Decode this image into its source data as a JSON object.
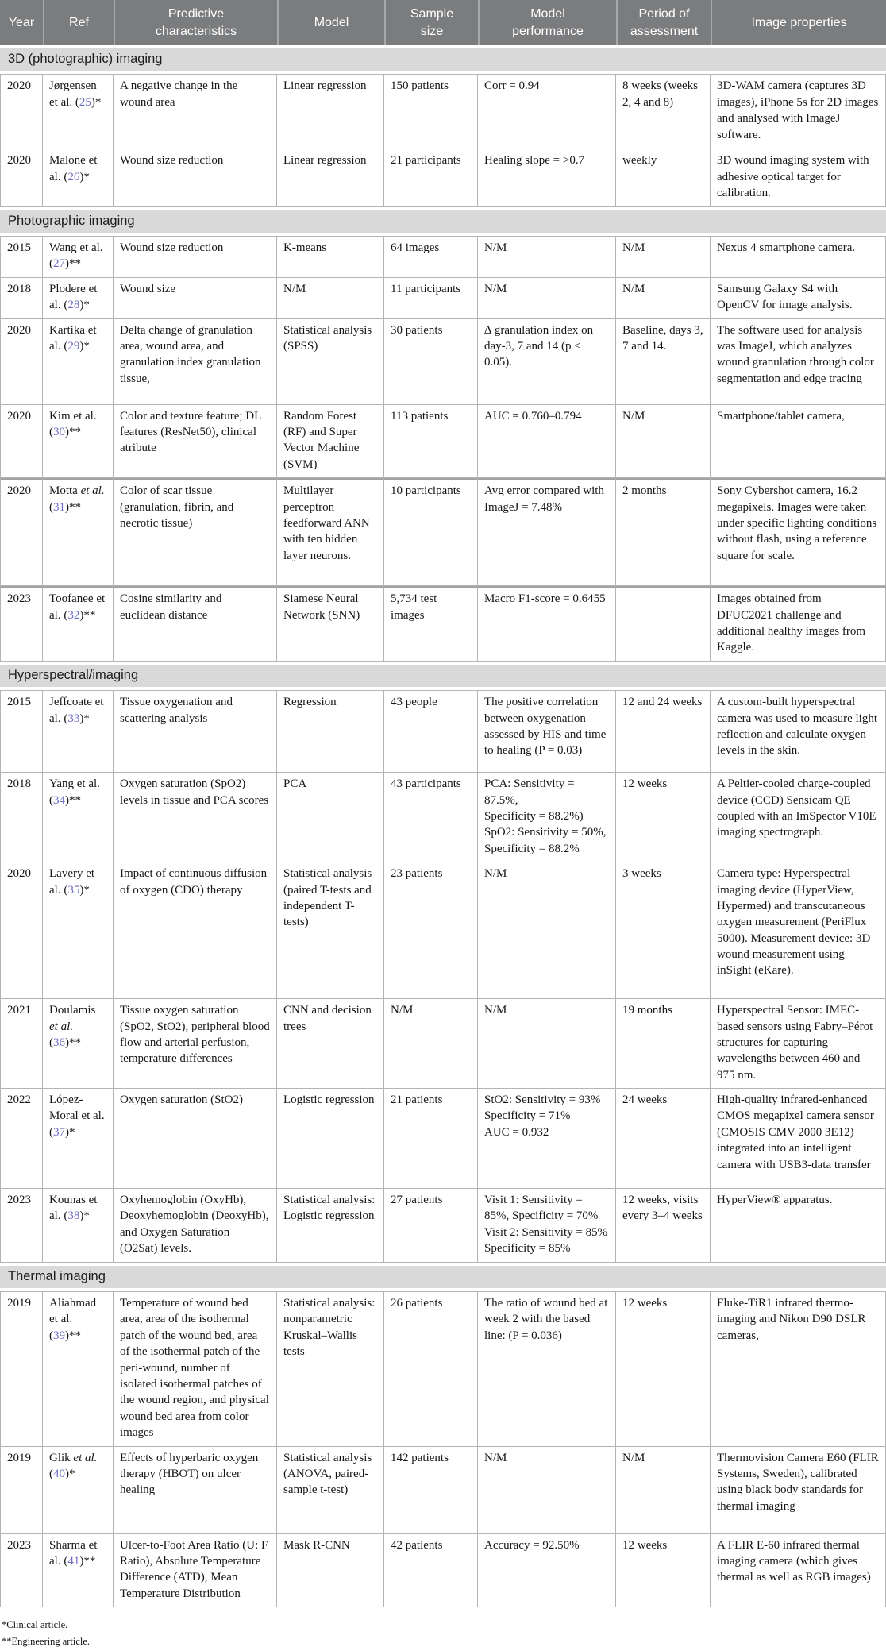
{
  "columns": [
    "Year",
    "Ref",
    "Predictive characteristics",
    "Model",
    "Sample size",
    "Model performance",
    "Period of assessment",
    "Image properties"
  ],
  "accent_colors": {
    "header_background": "#7b7c7e",
    "section_background": "#d9d9d9",
    "citation_link": "#6c6cc4",
    "cell_border": "#b4b4b4"
  },
  "sections": [
    {
      "title": "3D (photographic) imaging",
      "rows": [
        {
          "year": "2020",
          "ref": {
            "name": "Jørgensen",
            "etal": "et al.",
            "num": "25",
            "mark": "*",
            "italic": false
          },
          "characteristics": "A negative change in the wound area",
          "model": "Linear regression",
          "sample": "150 patients",
          "performance": "Corr = 0.94",
          "period": "8 weeks (weeks 2, 4 and 8)",
          "image": "3D-WAM camera (captures 3D images), iPhone 5s for 2D images and analysed with ImageJ software."
        },
        {
          "year": "2020",
          "ref": {
            "name": "Malone",
            "etal": "et al.",
            "num": "26",
            "mark": "*",
            "italic": false
          },
          "characteristics": "Wound size reduction",
          "model": "Linear regression",
          "sample": "21 participants",
          "performance": "Healing slope = >0.7",
          "period": "weekly",
          "image": "3D wound imaging system with adhesive optical target for calibration."
        }
      ]
    },
    {
      "title": "Photographic imaging",
      "rows": [
        {
          "year": "2015",
          "ref": {
            "name": "Wang",
            "etal": "et al.",
            "num": "27",
            "mark": "**",
            "italic": false
          },
          "characteristics": "Wound size reduction",
          "model": "K-means",
          "sample": "64 images",
          "performance": "N/M",
          "period": "N/M",
          "image": "Nexus 4 smartphone camera."
        },
        {
          "year": "2018",
          "ref": {
            "name": "Plodere",
            "etal": "et al.",
            "num": "28",
            "mark": "*",
            "italic": false
          },
          "characteristics": "Wound size",
          "model": "N/M",
          "sample": "11 participants",
          "performance": "N/M",
          "period": "N/M",
          "image": "Samsung Galaxy S4 with OpenCV for image analysis."
        },
        {
          "year": "2020",
          "ref": {
            "name": "Kartika",
            "etal": "et al.",
            "num": "29",
            "mark": "*",
            "italic": false
          },
          "characteristics": "Delta change of granulation area, wound area, and granulation index granulation tissue,",
          "model": "Statistical analysis (SPSS)",
          "sample": "30 patients",
          "performance": "∆ granulation index on day-3, 7 and 14 (p < 0.05).",
          "period": "Baseline, days 3, 7 and 14.",
          "image": "The software used for analysis was ImageJ, which analyzes wound granulation through color segmentation and edge tracing"
        },
        {
          "year": "2020",
          "ref": {
            "name": "Kim",
            "etal": "et al.",
            "num": "30",
            "mark": "**",
            "italic": false
          },
          "characteristics": "Color and texture feature; DL features (ResNet50), clinical atribute",
          "model": "Random Forest (RF) and Super Vector Machine (SVM)",
          "sample": "113 patients",
          "performance": "AUC = 0.760–0.794",
          "period": "N/M",
          "image": "Smartphone/tablet camera,"
        },
        {
          "year": "2020",
          "ref": {
            "name": "Motta",
            "etal": "et al.",
            "num": "31",
            "mark": "**",
            "italic": true
          },
          "dbl": true,
          "characteristics": "Color of scar tissue (granulation, fibrin, and necrotic tissue)",
          "model": "Multilayer perceptron feedforward ANN with ten hidden layer neurons.",
          "sample": "10 participants",
          "performance": "Avg error compared with ImageJ = 7.48%",
          "period": "2 months",
          "image": "Sony Cybershot camera, 16.2 megapixels. Images were taken under specific lighting conditions without flash, using a reference square for scale."
        },
        {
          "year": "2023",
          "ref": {
            "name": "Toofanee",
            "etal": "et al.",
            "num": "32",
            "mark": "**",
            "italic": false
          },
          "dbl": true,
          "characteristics": "Cosine similarity and euclidean distance",
          "model": "Siamese Neural Network (SNN)",
          "sample": "5,734 test images",
          "performance": "Macro F1-score = 0.6455",
          "period": "",
          "image": "Images obtained from DFUC2021 challenge and additional healthy images from Kaggle."
        }
      ]
    },
    {
      "title": "Hyperspectral/imaging",
      "rows": [
        {
          "year": "2015",
          "ref": {
            "name": "Jeffcoate",
            "etal": "et al.",
            "num": "33",
            "mark": "*",
            "italic": false
          },
          "characteristics": "Tissue oxygenation and scattering analysis",
          "model": "Regression",
          "sample": "43 people",
          "performance": "The positive correlation between oxygenation assessed by HIS and time to healing (P = 0.03)",
          "period": "12 and 24 weeks",
          "image": "A custom-built hyperspectral camera was used to measure light reflection and calculate oxygen levels in the skin."
        },
        {
          "year": "2018",
          "ref": {
            "name": "Yang",
            "etal": "et al.",
            "num": "34",
            "mark": "**",
            "italic": false
          },
          "characteristics": "Oxygen saturation (SpO2) levels in tissue and PCA scores",
          "model": "PCA",
          "sample": "43 participants",
          "performance": "PCA: Sensitivity = 87.5%,\nSpecificity = 88.2%)\nSpO2: Sensitivity = 50%,\nSpecificity = 88.2%",
          "period": "12 weeks",
          "image": "A Peltier-cooled charge-coupled device (CCD) Sensicam QE coupled with an ImSpector V10E imaging spectrograph."
        },
        {
          "year": "2020",
          "ref": {
            "name": "Lavery",
            "etal": "et al.",
            "num": "35",
            "mark": "*",
            "italic": false
          },
          "characteristics": "Impact of continuous diffusion of oxygen (CDO) therapy",
          "model": "Statistical analysis (paired T-tests and independent T-tests)",
          "sample": "23 patients",
          "performance": "N/M",
          "period": "3 weeks",
          "image": "Camera type: Hyperspectral imaging device (HyperView, Hypermed) and transcutaneous oxygen measurement (PeriFlux 5000). Measurement device: 3D wound measurement using inSight (eKare)."
        },
        {
          "year": "2021",
          "ref": {
            "name": "Doulamis",
            "etal": "et al.",
            "num": "36",
            "mark": "**",
            "italic": true
          },
          "characteristics": "Tissue oxygen saturation (SpO2, StO2), peripheral blood flow and arterial perfusion, temperature differences",
          "model": "CNN and decision trees",
          "sample": "N/M",
          "performance": "N/M",
          "period": "19 months",
          "image": "Hyperspectral Sensor: IMEC-based sensors using Fabry–Pérot structures for capturing wavelengths between 460 and 975 nm."
        },
        {
          "year": "2022",
          "ref": {
            "name": "López-Moral",
            "etal": "et al.",
            "num": "37",
            "mark": "*",
            "italic": false
          },
          "characteristics": "Oxygen saturation (StO2)",
          "model": "Logistic regression",
          "sample": "21 patients",
          "performance": "StO2: Sensitivity = 93%\nSpecificity = 71%\nAUC = 0.932",
          "period": "24 weeks",
          "image": "High-quality infrared-enhanced CMOS megapixel camera sensor (CMOSIS CMV 2000 3E12) integrated into an intelligent camera with USB3-data transfer"
        },
        {
          "year": "2023",
          "ref": {
            "name": "Kounas",
            "etal": "et al.",
            "num": "38",
            "mark": "*",
            "italic": false
          },
          "characteristics": "Oxyhemoglobin (OxyHb), Deoxyhemoglobin (DeoxyHb), and Oxygen Saturation (O2Sat) levels.",
          "model": "Statistical analysis: Logistic regression",
          "sample": "27 patients",
          "performance": "Visit 1: Sensitivity = 85%, Specificity = 70% Visit 2: Sensitivity = 85% Specificity = 85%",
          "period": "12 weeks, visits every 3–4 weeks",
          "image": "HyperView® apparatus."
        }
      ]
    },
    {
      "title": "Thermal imaging",
      "rows": [
        {
          "year": "2019",
          "ref": {
            "name": "Aliahmad",
            "etal": "et al.",
            "num": "39",
            "mark": "**",
            "italic": false
          },
          "characteristics": "Temperature of wound bed area, area of the isothermal patch of the wound bed, area of the isothermal patch of the peri-wound, number of isolated isothermal patches of the wound region, and physical wound bed area from color images",
          "model": "Statistical analysis: nonparametric Kruskal–Wallis tests",
          "sample": "26 patients",
          "performance": "The ratio of wound bed at week 2 with the based line: (P = 0.036)",
          "period": "12 weeks",
          "image": "Fluke-TiR1 infrared thermo-imaging and Nikon D90 DSLR cameras,"
        },
        {
          "year": "2019",
          "ref": {
            "name": "Glik",
            "etal": "et al.",
            "num": "40",
            "mark": "*",
            "italic": true
          },
          "characteristics": "Effects of hyperbaric oxygen therapy (HBOT) on ulcer healing",
          "model": "Statistical analysis (ANOVA, paired-sample t-test)",
          "sample": "142 patients",
          "performance": "N/M",
          "period": "N/M",
          "image": "Thermovision Camera E60 (FLIR Systems, Sweden), calibrated using black body standards for thermal imaging"
        },
        {
          "year": "2023",
          "ref": {
            "name": "Sharma",
            "etal": "et al.",
            "num": "41",
            "mark": "**",
            "italic": false
          },
          "characteristics": "Ulcer-to-Foot Area Ratio (U: F Ratio), Absolute Temperature Difference (ATD), Mean Temperature Distribution",
          "model": "Mask R-CNN",
          "sample": "42 patients",
          "performance": "Accuracy = 92.50%",
          "period": "12 weeks",
          "image": "A FLIR E-60 infrared thermal imaging camera (which gives thermal as well as RGB images)"
        }
      ]
    }
  ],
  "footnotes": [
    "*Clinical article.",
    "**Engineering article."
  ]
}
